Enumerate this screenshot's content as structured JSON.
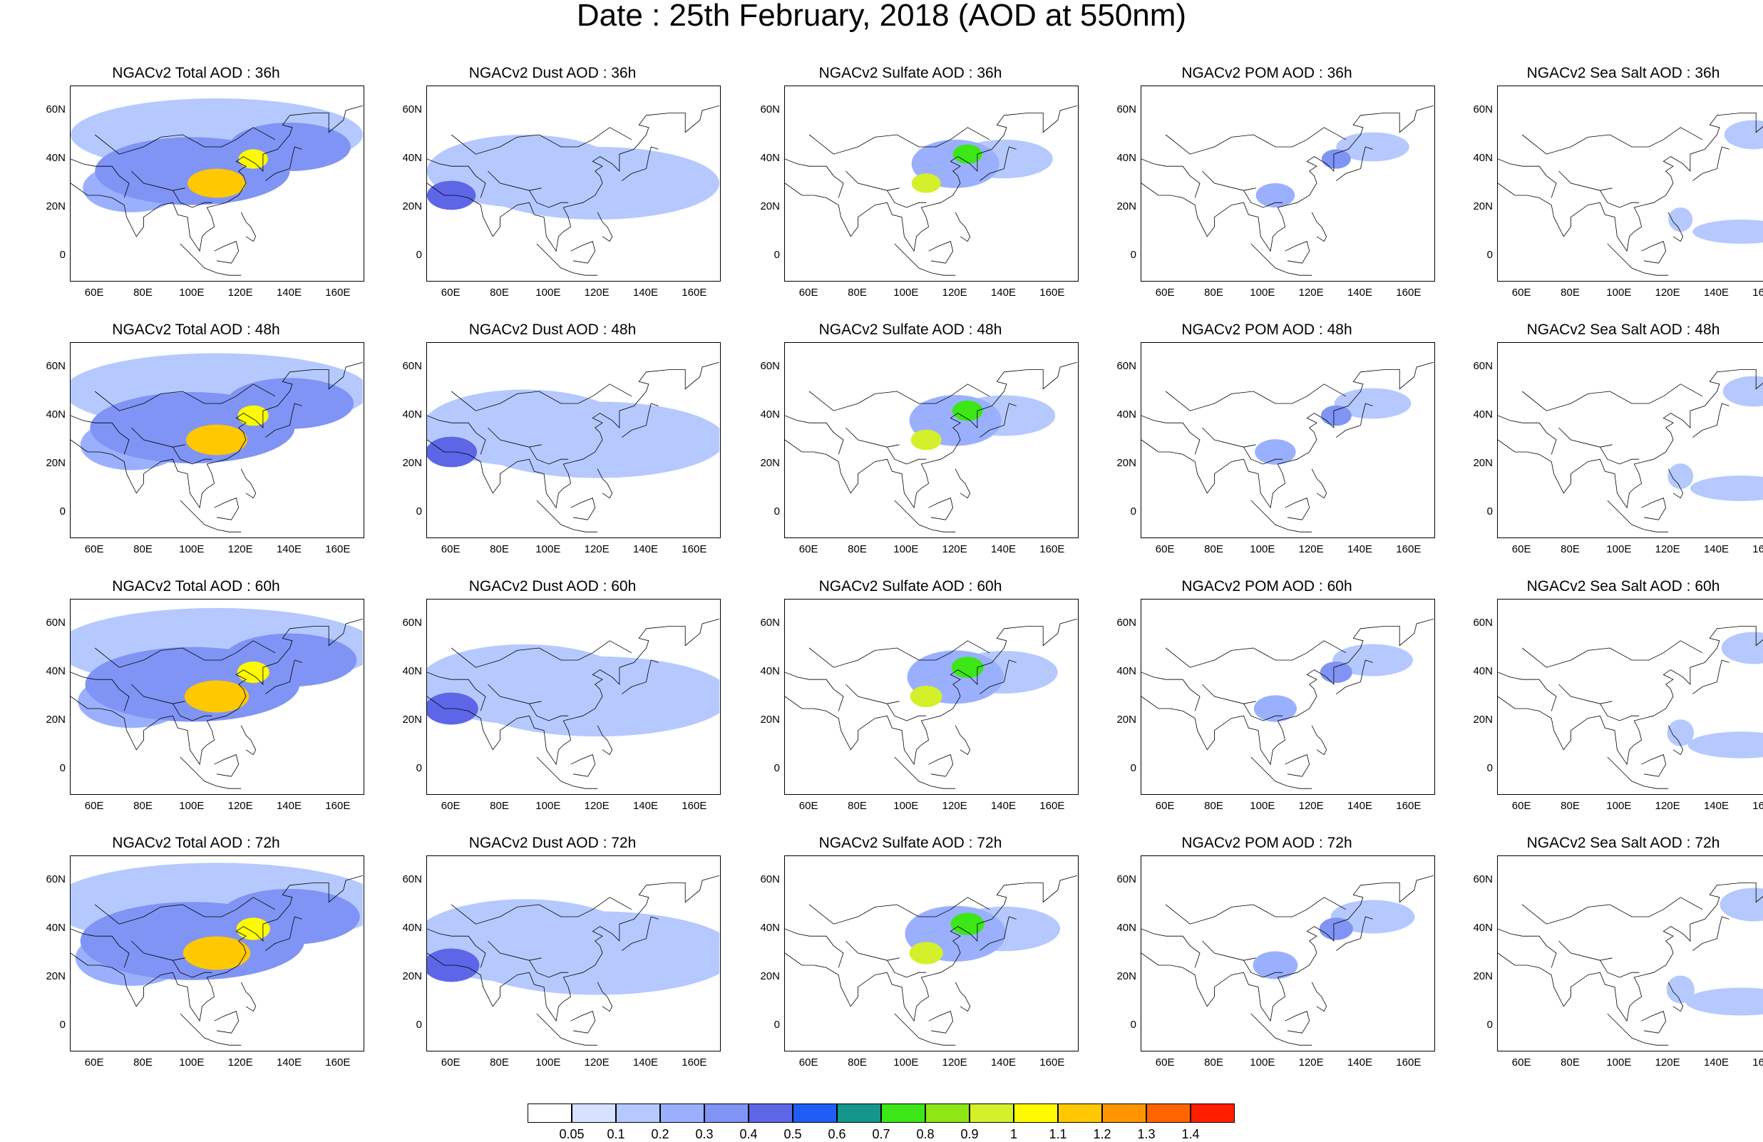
{
  "title": "Date : 25th February, 2018 (AOD at 550nm)",
  "axes": {
    "x_ticks": [
      "60E",
      "80E",
      "100E",
      "120E",
      "140E",
      "160E"
    ],
    "y_ticks": [
      "60N",
      "40N",
      "20N",
      "0"
    ],
    "lon_range": [
      50,
      170
    ],
    "lat_range": [
      -10,
      70
    ]
  },
  "colorbar": {
    "labels": [
      "0.05",
      "0.1",
      "0.2",
      "0.3",
      "0.4",
      "0.5",
      "0.6",
      "0.7",
      "0.8",
      "0.9",
      "1",
      "1.1",
      "1.2",
      "1.3",
      "1.4"
    ],
    "colors": [
      "#ffffff",
      "#d6e2ff",
      "#b5c9ff",
      "#9ab0ff",
      "#7f94f4",
      "#5e66e8",
      "#1f5ef5",
      "#14968c",
      "#3ce617",
      "#8ee617",
      "#d4f02a",
      "#fffa00",
      "#ffc800",
      "#ff9600",
      "#ff6400",
      "#ff1e00"
    ]
  },
  "chart_data": {
    "type": "heatmap",
    "variable": "AOD at 550nm",
    "rows": [
      "36h",
      "48h",
      "60h",
      "72h"
    ],
    "columns": [
      "Total",
      "Dust",
      "Sulfate",
      "POM",
      "Sea Salt"
    ],
    "panels": [
      {
        "title": "NGACv2 Total AOD : 36h",
        "row": 0,
        "col": 0
      },
      {
        "title": "NGACv2 Dust AOD : 36h",
        "row": 0,
        "col": 1
      },
      {
        "title": "NGACv2 Sulfate AOD : 36h",
        "row": 0,
        "col": 2
      },
      {
        "title": "NGACv2 POM AOD : 36h",
        "row": 0,
        "col": 3
      },
      {
        "title": "NGACv2 Sea Salt AOD : 36h",
        "row": 0,
        "col": 4
      },
      {
        "title": "NGACv2 Total AOD : 48h",
        "row": 1,
        "col": 0
      },
      {
        "title": "NGACv2 Dust AOD : 48h",
        "row": 1,
        "col": 1
      },
      {
        "title": "NGACv2 Sulfate AOD : 48h",
        "row": 1,
        "col": 2
      },
      {
        "title": "NGACv2 POM AOD : 48h",
        "row": 1,
        "col": 3
      },
      {
        "title": "NGACv2 Sea Salt AOD : 48h",
        "row": 1,
        "col": 4
      },
      {
        "title": "NGACv2 Total AOD : 60h",
        "row": 2,
        "col": 0
      },
      {
        "title": "NGACv2 Dust AOD : 60h",
        "row": 2,
        "col": 1
      },
      {
        "title": "NGACv2 Sulfate AOD : 60h",
        "row": 2,
        "col": 2
      },
      {
        "title": "NGACv2 POM AOD : 60h",
        "row": 2,
        "col": 3
      },
      {
        "title": "NGACv2 Sea Salt AOD : 60h",
        "row": 2,
        "col": 4
      },
      {
        "title": "NGACv2 Total AOD : 72h",
        "row": 3,
        "col": 0
      },
      {
        "title": "NGACv2 Dust AOD : 72h",
        "row": 3,
        "col": 1
      },
      {
        "title": "NGACv2 Sulfate AOD : 72h",
        "row": 3,
        "col": 2
      },
      {
        "title": "NGACv2 POM AOD : 72h",
        "row": 3,
        "col": 3
      },
      {
        "title": "NGACv2 Sea Salt  AOD : 72h",
        "row": 3,
        "col": 4
      }
    ],
    "blobs": {
      "Total": [
        {
          "lon": 110,
          "lat": 30,
          "rlon": 12,
          "rlat": 6,
          "v": 1.1
        },
        {
          "lon": 125,
          "lat": 40,
          "rlon": 6,
          "rlat": 4,
          "v": 1.0
        },
        {
          "lon": 100,
          "lat": 35,
          "rlon": 40,
          "rlat": 14,
          "v": 0.3
        },
        {
          "lon": 140,
          "lat": 45,
          "rlon": 25,
          "rlat": 10,
          "v": 0.3
        },
        {
          "lon": 75,
          "lat": 28,
          "rlon": 20,
          "rlat": 10,
          "v": 0.25
        },
        {
          "lon": 110,
          "lat": 50,
          "rlon": 60,
          "rlat": 15,
          "v": 0.12
        }
      ],
      "Dust": [
        {
          "lon": 60,
          "lat": 25,
          "rlon": 10,
          "rlat": 6,
          "v": 0.4
        },
        {
          "lon": 90,
          "lat": 35,
          "rlon": 40,
          "rlat": 15,
          "v": 0.15
        },
        {
          "lon": 120,
          "lat": 30,
          "rlon": 50,
          "rlat": 15,
          "v": 0.1
        }
      ],
      "Sulfate": [
        {
          "lon": 108,
          "lat": 30,
          "rlon": 6,
          "rlat": 4,
          "v": 0.9
        },
        {
          "lon": 125,
          "lat": 42,
          "rlon": 6,
          "rlat": 4,
          "v": 0.7
        },
        {
          "lon": 120,
          "lat": 38,
          "rlon": 18,
          "rlat": 10,
          "v": 0.25
        },
        {
          "lon": 140,
          "lat": 40,
          "rlon": 20,
          "rlat": 8,
          "v": 0.1
        }
      ],
      "POM": [
        {
          "lon": 130,
          "lat": 40,
          "rlon": 6,
          "rlat": 4,
          "v": 0.3
        },
        {
          "lon": 105,
          "lat": 25,
          "rlon": 8,
          "rlat": 5,
          "v": 0.2
        },
        {
          "lon": 145,
          "lat": 45,
          "rlon": 15,
          "rlat": 6,
          "v": 0.1
        }
      ],
      "Sea Salt": [
        {
          "lon": 150,
          "lat": 10,
          "rlon": 20,
          "rlat": 5,
          "v": 0.1
        },
        {
          "lon": 155,
          "lat": 50,
          "rlon": 12,
          "rlat": 6,
          "v": 0.1
        },
        {
          "lon": 125,
          "lat": 15,
          "rlon": 5,
          "rlat": 5,
          "v": 0.15
        }
      ]
    }
  }
}
